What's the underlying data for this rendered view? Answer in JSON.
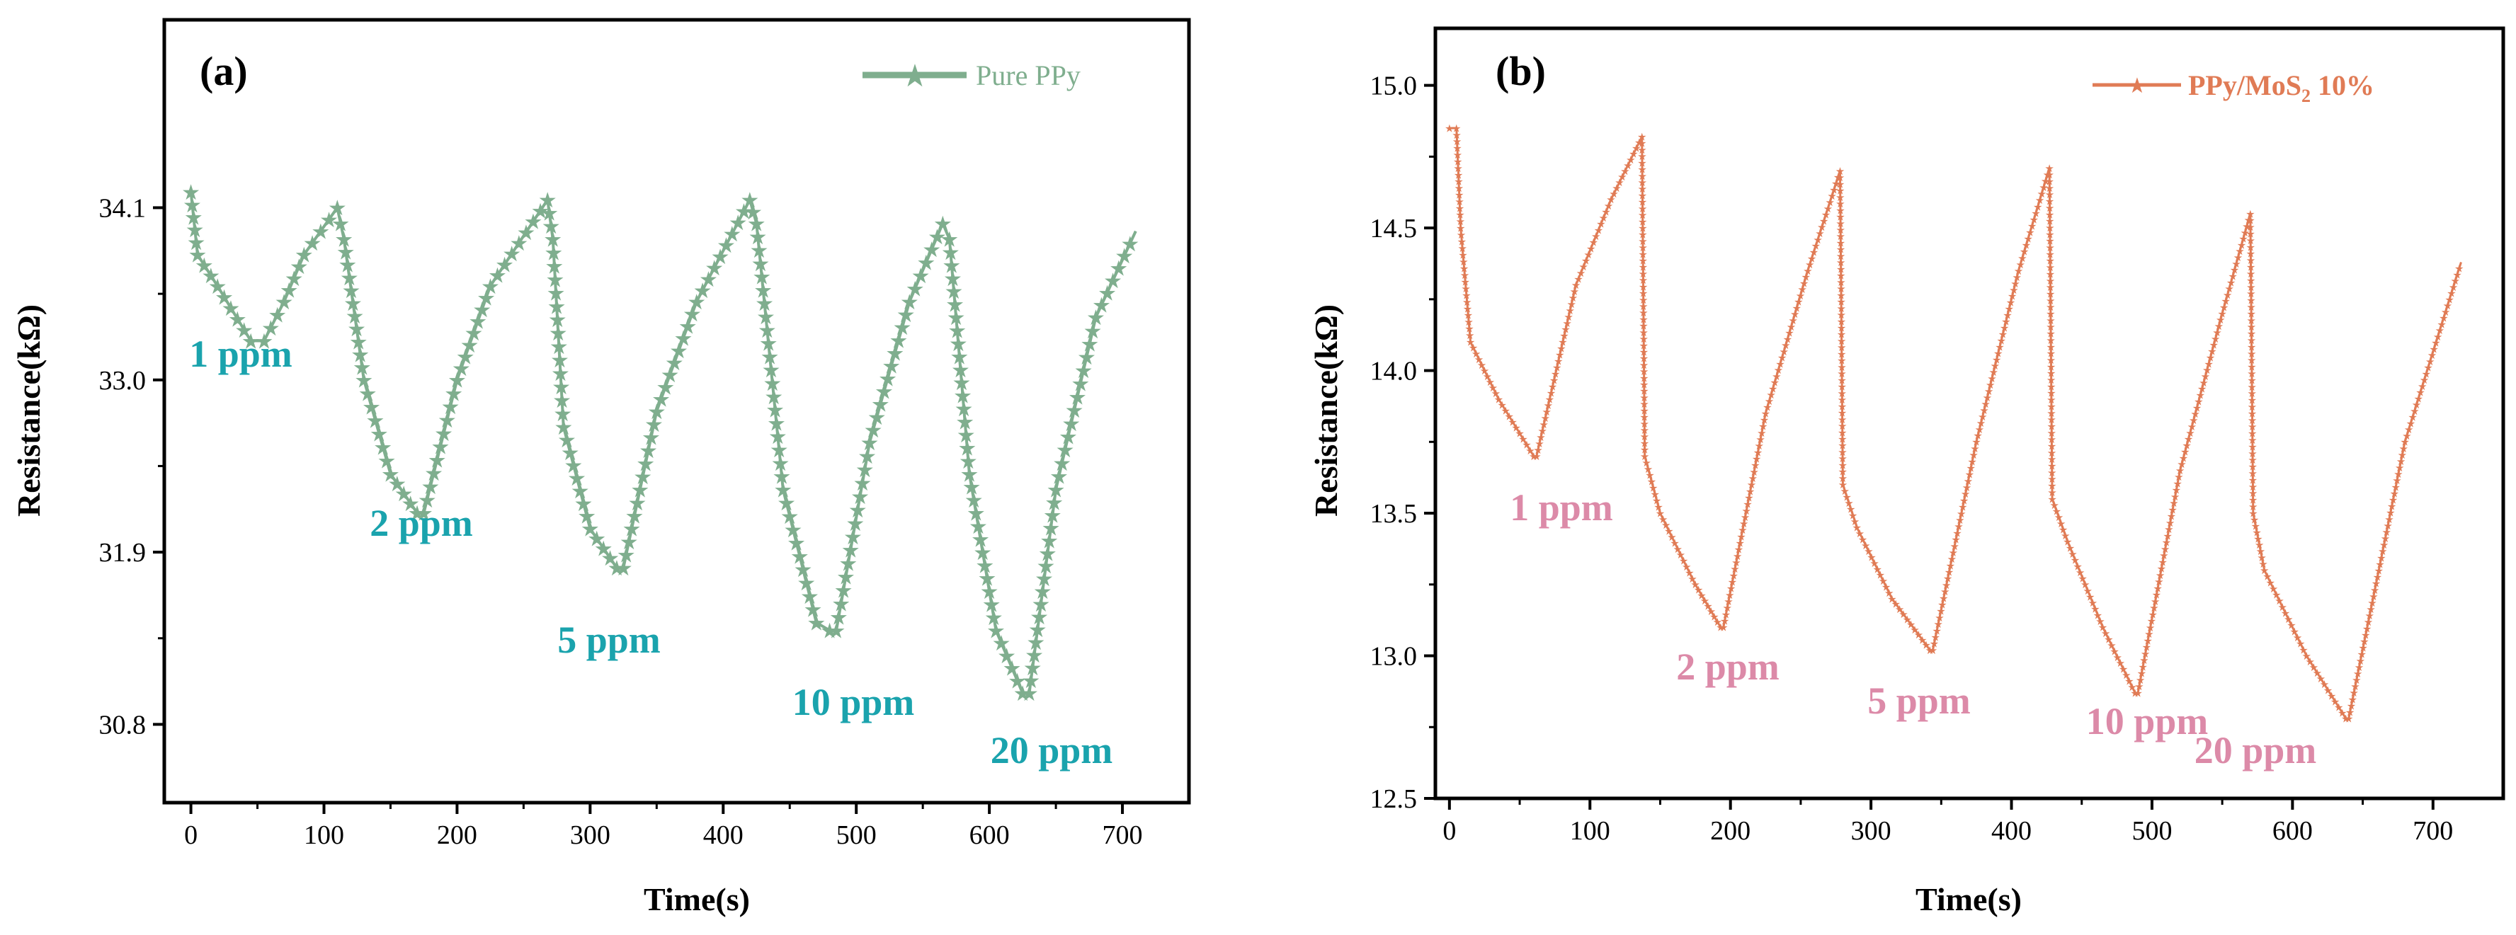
{
  "chart_data": [
    {
      "type": "line",
      "panel_label": "(a)",
      "title": "",
      "xlabel": "Time(s)",
      "ylabel": "Resistance(kΩ)",
      "xlim": [
        -20,
        750
      ],
      "ylim": [
        30.3,
        35.3
      ],
      "xticks": [
        0,
        100,
        200,
        300,
        400,
        500,
        600,
        700
      ],
      "yticks": [
        30.8,
        31.9,
        33.0,
        34.1
      ],
      "grid": false,
      "legend_position": "top-right",
      "colors": {
        "line": "#7fae8e",
        "annotation": "#1aa3ad"
      },
      "series": [
        {
          "name": "Pure PPy",
          "marker": "star",
          "x": [
            0,
            5,
            20,
            45,
            55,
            70,
            85,
            110,
            115,
            130,
            150,
            170,
            175,
            200,
            225,
            268,
            272,
            280,
            300,
            320,
            325,
            350,
            380,
            420,
            425,
            445,
            470,
            480,
            485,
            510,
            540,
            565,
            570,
            585,
            605,
            625,
            630,
            650,
            680,
            710
          ],
          "values": [
            34.2,
            33.8,
            33.6,
            33.25,
            33.25,
            33.5,
            33.8,
            34.1,
            33.9,
            33.0,
            32.4,
            32.15,
            32.15,
            33.0,
            33.6,
            34.15,
            33.9,
            32.7,
            32.05,
            31.8,
            31.8,
            32.8,
            33.5,
            34.15,
            34.0,
            32.3,
            31.45,
            31.4,
            31.4,
            32.6,
            33.5,
            34.0,
            33.9,
            32.4,
            31.4,
            31.0,
            31.0,
            32.3,
            33.4,
            33.95
          ]
        }
      ],
      "annotations": [
        "1 ppm",
        "2 ppm",
        "5 ppm",
        "10 ppm",
        "20 ppm"
      ]
    },
    {
      "type": "line",
      "panel_label": "(b)",
      "title": "",
      "xlabel": "Time(s)",
      "ylabel": "Resistance(kΩ)",
      "xlim": [
        -10,
        750
      ],
      "ylim": [
        12.5,
        15.2
      ],
      "xticks": [
        0,
        100,
        200,
        300,
        400,
        500,
        600,
        700
      ],
      "yticks": [
        12.5,
        13.0,
        13.5,
        14.0,
        14.5,
        15.0
      ],
      "grid": false,
      "legend_position": "top-right",
      "colors": {
        "line": "#e07b55",
        "annotation": "#dc8aa8"
      },
      "series": [
        {
          "name": "PPy/MoS2 10%",
          "legend_main": "PPy/MoS",
          "legend_sub": "2",
          "legend_tail": " 10%",
          "marker": "star",
          "x": [
            0,
            5,
            8,
            15,
            35,
            60,
            62,
            90,
            115,
            137,
            139,
            150,
            175,
            193,
            195,
            225,
            255,
            278,
            280,
            290,
            315,
            342,
            344,
            375,
            405,
            427,
            429,
            440,
            465,
            488,
            490,
            520,
            550,
            570,
            572,
            580,
            610,
            638,
            640,
            680,
            720
          ],
          "values": [
            14.85,
            14.85,
            14.5,
            14.1,
            13.9,
            13.7,
            13.7,
            14.3,
            14.6,
            14.82,
            13.7,
            13.5,
            13.25,
            13.1,
            13.1,
            13.85,
            14.35,
            14.7,
            13.6,
            13.45,
            13.2,
            13.02,
            13.02,
            13.75,
            14.35,
            14.71,
            13.55,
            13.4,
            13.1,
            12.87,
            12.87,
            13.65,
            14.2,
            14.55,
            13.5,
            13.3,
            13.0,
            12.78,
            12.78,
            13.75,
            14.38
          ]
        }
      ],
      "annotations": [
        "1 ppm",
        "2 ppm",
        "5 ppm",
        "10 ppm",
        "20 ppm"
      ]
    }
  ]
}
